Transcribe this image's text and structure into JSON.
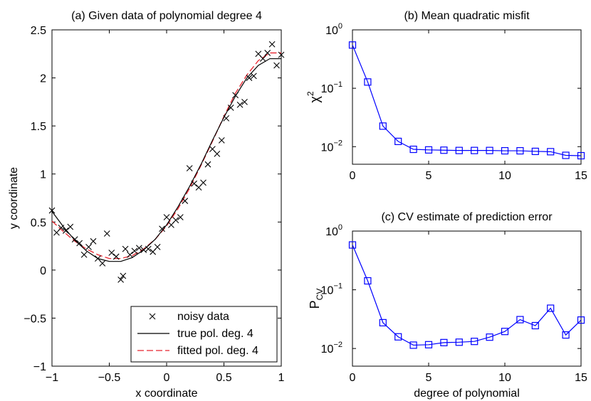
{
  "chart_data": [
    {
      "type": "scatter",
      "title": "(a) Given data of polynomial degree 4",
      "xlabel": "x coordinate",
      "ylabel": "y coordinate",
      "xlim": [
        -1,
        1
      ],
      "ylim": [
        -1,
        2.5
      ],
      "xticks": [
        -1,
        -0.5,
        0,
        0.5,
        1
      ],
      "xtick_labels": [
        "−1",
        "−0.5",
        "0",
        "0.5",
        "1"
      ],
      "yticks": [
        -1,
        -0.5,
        0,
        0.5,
        1,
        1.5,
        2,
        2.5
      ],
      "ytick_labels": [
        "−1",
        "−0.5",
        "0",
        "0.5",
        "1",
        "1.5",
        "2",
        "2.5"
      ],
      "legend_position": "bottom-right",
      "legend": [
        {
          "label": "noisy data",
          "style": "marker-x"
        },
        {
          "label": "true pol. deg. 4",
          "style": "solid"
        },
        {
          "label": "fitted pol. deg. 4",
          "style": "dashed"
        }
      ],
      "series": [
        {
          "name": "noisy data",
          "color": "#000000",
          "x": [
            -1.0,
            -0.96,
            -0.92,
            -0.88,
            -0.84,
            -0.8,
            -0.76,
            -0.72,
            -0.68,
            -0.64,
            -0.6,
            -0.56,
            -0.52,
            -0.48,
            -0.44,
            -0.4,
            -0.38,
            -0.36,
            -0.32,
            -0.28,
            -0.24,
            -0.2,
            -0.16,
            -0.12,
            -0.08,
            -0.04,
            0.0,
            0.04,
            0.08,
            0.12,
            0.16,
            0.2,
            0.24,
            0.28,
            0.32,
            0.36,
            0.4,
            0.44,
            0.48,
            0.52,
            0.56,
            0.6,
            0.64,
            0.68,
            0.72,
            0.76,
            0.8,
            0.84,
            0.88,
            0.92,
            0.96,
            1.0
          ],
          "y": [
            0.62,
            0.39,
            0.44,
            0.41,
            0.45,
            0.32,
            0.28,
            0.16,
            0.24,
            0.3,
            0.12,
            0.07,
            0.38,
            0.18,
            0.14,
            -0.1,
            -0.06,
            0.22,
            0.16,
            0.2,
            0.23,
            0.21,
            0.22,
            0.19,
            0.24,
            0.43,
            0.55,
            0.47,
            0.52,
            0.55,
            0.72,
            1.06,
            0.9,
            0.86,
            0.91,
            1.1,
            1.26,
            1.21,
            1.35,
            1.58,
            1.69,
            1.82,
            1.72,
            1.75,
            2.0,
            2.02,
            2.25,
            2.2,
            2.26,
            2.35,
            2.13,
            2.24
          ]
        },
        {
          "name": "true pol. deg. 4",
          "color": "#000000",
          "x": [
            -1.0,
            -0.9,
            -0.8,
            -0.7,
            -0.6,
            -0.5,
            -0.4,
            -0.3,
            -0.2,
            -0.1,
            0.0,
            0.1,
            0.2,
            0.3,
            0.4,
            0.5,
            0.6,
            0.7,
            0.8,
            0.9,
            1.0
          ],
          "y": [
            0.61,
            0.45,
            0.31,
            0.2,
            0.12,
            0.09,
            0.09,
            0.13,
            0.21,
            0.32,
            0.47,
            0.66,
            0.87,
            1.1,
            1.35,
            1.59,
            1.81,
            2.0,
            2.13,
            2.2,
            2.2
          ]
        },
        {
          "name": "fitted pol. deg. 4",
          "color": "#e8232d",
          "x": [
            -1.0,
            -0.9,
            -0.8,
            -0.7,
            -0.6,
            -0.5,
            -0.4,
            -0.3,
            -0.2,
            -0.1,
            0.0,
            0.1,
            0.2,
            0.3,
            0.4,
            0.5,
            0.6,
            0.7,
            0.8,
            0.9,
            1.0
          ],
          "y": [
            0.51,
            0.4,
            0.3,
            0.22,
            0.16,
            0.12,
            0.12,
            0.15,
            0.22,
            0.32,
            0.46,
            0.64,
            0.85,
            1.09,
            1.34,
            1.6,
            1.84,
            2.03,
            2.18,
            2.26,
            2.26
          ]
        }
      ]
    },
    {
      "type": "line",
      "title": "(b) Mean quadratic misfit",
      "xlabel": "",
      "ylabel_base": "χ",
      "ylabel_sup": "2",
      "xlim": [
        0,
        15
      ],
      "yscale": "log",
      "ylim": [
        0.005,
        1
      ],
      "xticks": [
        0,
        5,
        10,
        15
      ],
      "xtick_labels": [
        "0",
        "5",
        "10",
        "15"
      ],
      "yticks": [
        0.01,
        0.1,
        1
      ],
      "ytick_labels": [
        [
          "10",
          "−2"
        ],
        [
          "10",
          "−1"
        ],
        [
          "10",
          "0"
        ]
      ],
      "series": [
        {
          "color": "#0000ff",
          "marker": "square",
          "x": [
            0,
            1,
            2,
            3,
            4,
            5,
            6,
            7,
            8,
            9,
            10,
            11,
            12,
            13,
            14,
            15
          ],
          "y": [
            0.55,
            0.128,
            0.0225,
            0.0123,
            0.009,
            0.0088,
            0.0087,
            0.0086,
            0.0086,
            0.0086,
            0.0085,
            0.0085,
            0.0083,
            0.0082,
            0.0071,
            0.007
          ]
        }
      ]
    },
    {
      "type": "line",
      "title": "(c) CV estimate of prediction error",
      "xlabel": "degree of polynomial",
      "ylabel_base": "P",
      "ylabel_sub": "CV",
      "xlim": [
        0,
        15
      ],
      "yscale": "log",
      "ylim": [
        0.005,
        1
      ],
      "xticks": [
        0,
        5,
        10,
        15
      ],
      "xtick_labels": [
        "0",
        "5",
        "10",
        "15"
      ],
      "yticks": [
        0.01,
        0.1,
        1
      ],
      "ytick_labels": [
        [
          "10",
          "−2"
        ],
        [
          "10",
          "−1"
        ],
        [
          "10",
          "0"
        ]
      ],
      "series": [
        {
          "color": "#0000ff",
          "marker": "square",
          "x": [
            0,
            1,
            2,
            3,
            4,
            5,
            6,
            7,
            8,
            9,
            10,
            11,
            12,
            13,
            14,
            15
          ],
          "y": [
            0.58,
            0.142,
            0.0275,
            0.0158,
            0.0114,
            0.0116,
            0.0126,
            0.0128,
            0.0132,
            0.0156,
            0.0195,
            0.031,
            0.0245,
            0.0485,
            0.017,
            0.0305
          ]
        }
      ]
    }
  ]
}
